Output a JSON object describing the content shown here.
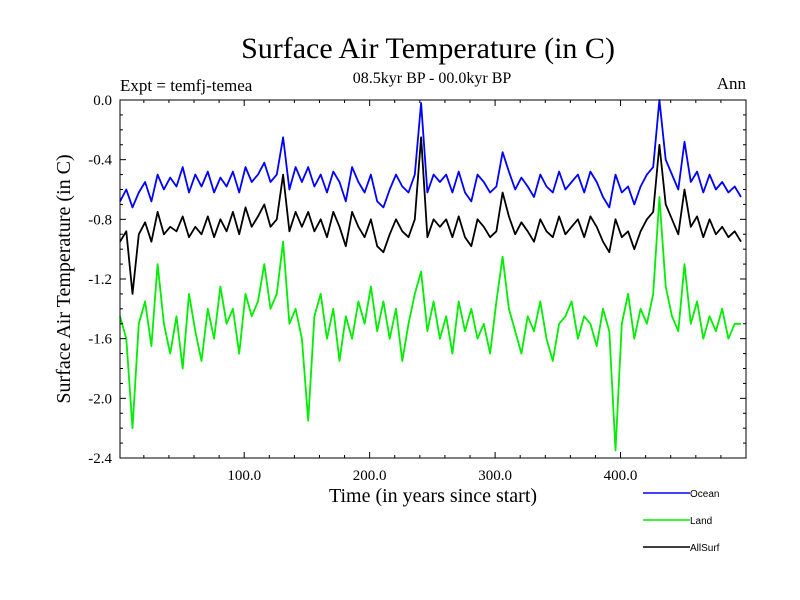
{
  "chart_data": {
    "type": "line",
    "title": "Surface Air Temperature (in C)",
    "subtitle": "08.5kyr BP - 00.0kyr BP",
    "left_annotation": "Expt = temfj-temea",
    "right_annotation": "Ann",
    "xlabel": "Time (in years since start)",
    "ylabel": "Surface Air Temperature (in C)",
    "xlim": [
      1,
      500
    ],
    "ylim": [
      -2.4,
      0.0
    ],
    "x_ticks": [
      100,
      200,
      300,
      400
    ],
    "x_tick_labels": [
      "100.0",
      "200.0",
      "300.0",
      "400.0"
    ],
    "y_ticks": [
      0.0,
      -0.4,
      -0.8,
      -1.2,
      -1.6,
      -2.0,
      -2.4
    ],
    "y_tick_labels": [
      "0.0",
      "-0.4",
      "-0.8",
      "-1.2",
      "-1.6",
      "-2.0",
      "-2.4"
    ],
    "legend_position": "bottom-right, below plot",
    "x_step": 5,
    "series": [
      {
        "name": "Ocean",
        "color": "#0000ff",
        "x_start": 1,
        "values": [
          -0.68,
          -0.6,
          -0.72,
          -0.62,
          -0.55,
          -0.68,
          -0.5,
          -0.6,
          -0.52,
          -0.58,
          -0.45,
          -0.62,
          -0.5,
          -0.58,
          -0.48,
          -0.62,
          -0.52,
          -0.58,
          -0.48,
          -0.62,
          -0.45,
          -0.55,
          -0.5,
          -0.42,
          -0.55,
          -0.5,
          -0.25,
          -0.6,
          -0.45,
          -0.55,
          -0.45,
          -0.58,
          -0.5,
          -0.62,
          -0.48,
          -0.55,
          -0.68,
          -0.45,
          -0.55,
          -0.62,
          -0.5,
          -0.68,
          -0.72,
          -0.6,
          -0.5,
          -0.58,
          -0.62,
          -0.5,
          -0.02,
          -0.62,
          -0.5,
          -0.55,
          -0.5,
          -0.62,
          -0.48,
          -0.62,
          -0.68,
          -0.5,
          -0.55,
          -0.62,
          -0.58,
          -0.35,
          -0.48,
          -0.6,
          -0.52,
          -0.58,
          -0.65,
          -0.5,
          -0.58,
          -0.62,
          -0.48,
          -0.6,
          -0.55,
          -0.5,
          -0.62,
          -0.48,
          -0.55,
          -0.65,
          -0.72,
          -0.5,
          -0.62,
          -0.58,
          -0.7,
          -0.58,
          -0.5,
          -0.45,
          -0.0,
          -0.4,
          -0.5,
          -0.6,
          -0.28,
          -0.55,
          -0.48,
          -0.62,
          -0.5,
          -0.6,
          -0.55,
          -0.62,
          -0.58,
          -0.65
        ]
      },
      {
        "name": "Land",
        "color": "#00ee00",
        "x_start": 1,
        "values": [
          -1.45,
          -1.6,
          -2.2,
          -1.5,
          -1.35,
          -1.65,
          -1.1,
          -1.5,
          -1.7,
          -1.45,
          -1.8,
          -1.3,
          -1.55,
          -1.75,
          -1.4,
          -1.6,
          -1.25,
          -1.5,
          -1.4,
          -1.7,
          -1.3,
          -1.45,
          -1.35,
          -1.1,
          -1.4,
          -1.3,
          -0.95,
          -1.5,
          -1.4,
          -1.6,
          -2.15,
          -1.45,
          -1.3,
          -1.6,
          -1.4,
          -1.75,
          -1.45,
          -1.6,
          -1.35,
          -1.5,
          -1.25,
          -1.55,
          -1.35,
          -1.6,
          -1.4,
          -1.75,
          -1.5,
          -1.3,
          -1.15,
          -1.55,
          -1.35,
          -1.6,
          -1.45,
          -1.7,
          -1.35,
          -1.55,
          -1.4,
          -1.6,
          -1.5,
          -1.7,
          -1.35,
          -1.05,
          -1.4,
          -1.55,
          -1.7,
          -1.45,
          -1.55,
          -1.35,
          -1.6,
          -1.75,
          -1.5,
          -1.45,
          -1.35,
          -1.6,
          -1.45,
          -1.5,
          -1.65,
          -1.4,
          -1.55,
          -2.35,
          -1.5,
          -1.3,
          -1.6,
          -1.4,
          -1.5,
          -1.3,
          -0.65,
          -1.25,
          -1.45,
          -1.55,
          -1.1,
          -1.5,
          -1.35,
          -1.6,
          -1.45,
          -1.55,
          -1.4,
          -1.6,
          -1.5,
          -1.5
        ]
      },
      {
        "name": "AllSurf",
        "color": "#000000",
        "x_start": 1,
        "values": [
          -0.95,
          -0.88,
          -1.3,
          -0.9,
          -0.82,
          -0.95,
          -0.75,
          -0.9,
          -0.85,
          -0.88,
          -0.78,
          -0.92,
          -0.85,
          -0.9,
          -0.78,
          -0.92,
          -0.8,
          -0.88,
          -0.75,
          -0.9,
          -0.72,
          -0.85,
          -0.78,
          -0.7,
          -0.85,
          -0.8,
          -0.5,
          -0.88,
          -0.75,
          -0.85,
          -0.75,
          -0.88,
          -0.8,
          -0.92,
          -0.75,
          -0.85,
          -0.98,
          -0.75,
          -0.85,
          -0.92,
          -0.8,
          -0.98,
          -1.02,
          -0.9,
          -0.8,
          -0.88,
          -0.92,
          -0.8,
          -0.25,
          -0.92,
          -0.8,
          -0.85,
          -0.8,
          -0.92,
          -0.78,
          -0.92,
          -0.98,
          -0.8,
          -0.85,
          -0.92,
          -0.88,
          -0.62,
          -0.78,
          -0.9,
          -0.82,
          -0.88,
          -0.95,
          -0.8,
          -0.88,
          -0.92,
          -0.78,
          -0.9,
          -0.85,
          -0.8,
          -0.92,
          -0.78,
          -0.85,
          -0.95,
          -1.02,
          -0.8,
          -0.92,
          -0.88,
          -1.0,
          -0.88,
          -0.8,
          -0.75,
          -0.3,
          -0.7,
          -0.8,
          -0.9,
          -0.6,
          -0.85,
          -0.78,
          -0.92,
          -0.8,
          -0.9,
          -0.85,
          -0.92,
          -0.88,
          -0.95
        ]
      }
    ]
  }
}
